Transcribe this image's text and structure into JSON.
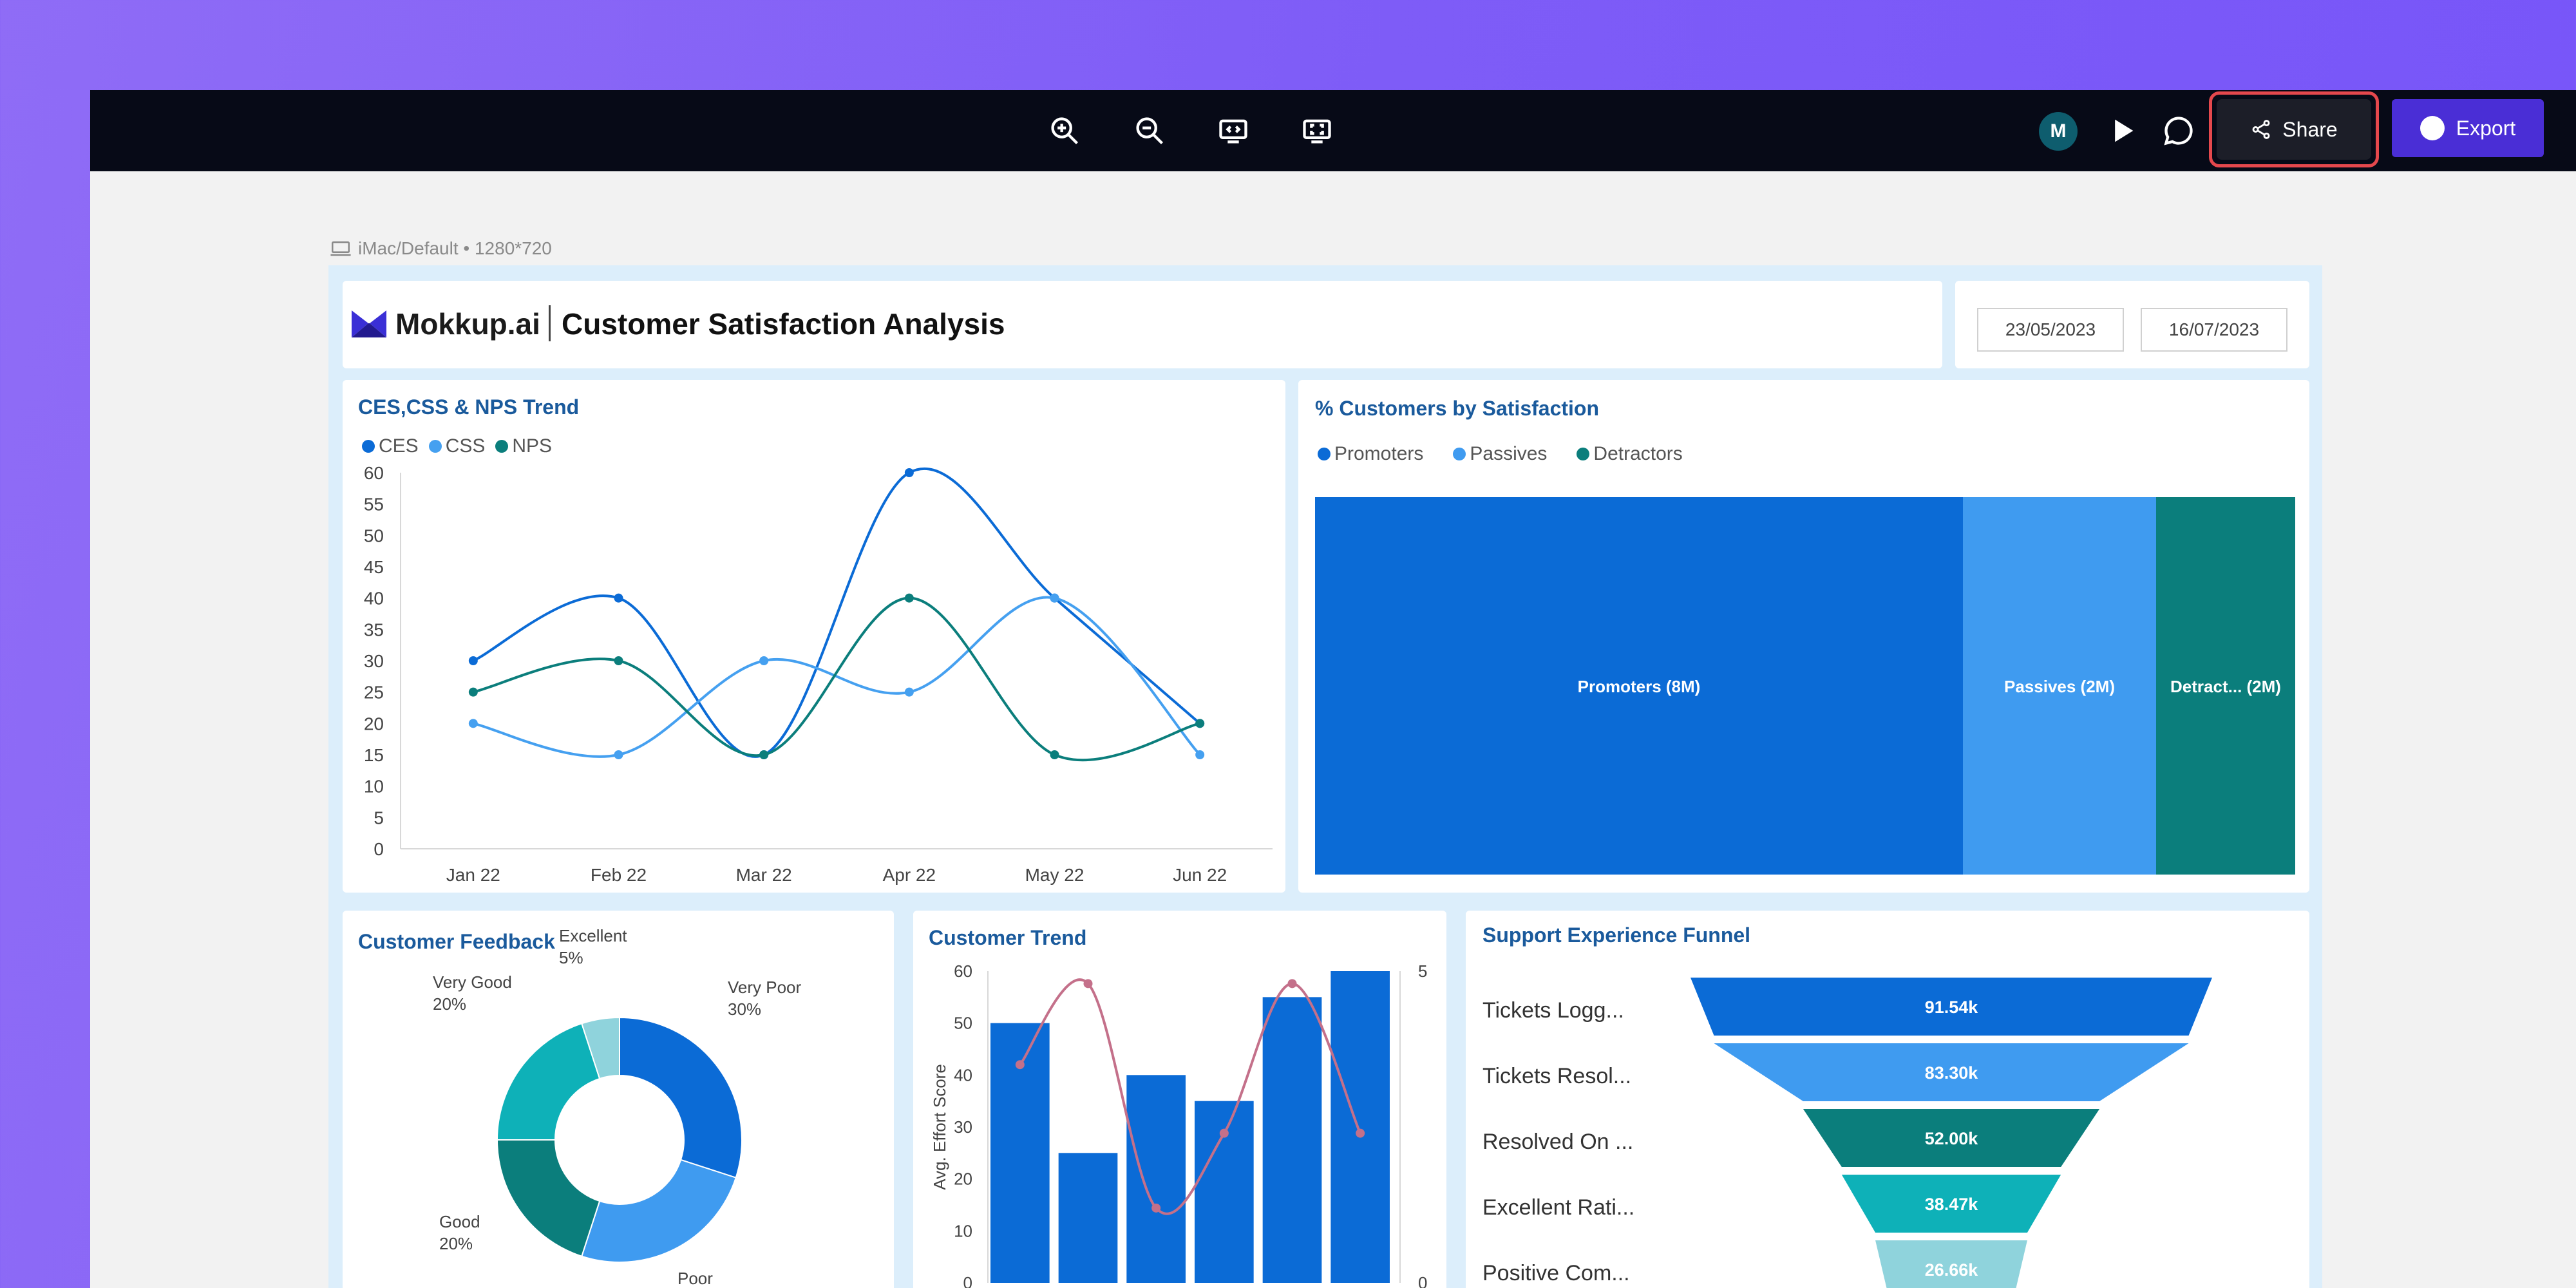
{
  "toolbar": {
    "center_icons": [
      "zoom-in-icon",
      "zoom-out-icon",
      "code-view-icon",
      "fit-screen-icon"
    ],
    "avatar_letter": "M",
    "share_label": "Share",
    "export_label": "Export",
    "colors": {
      "bar": "#070a17",
      "share_highlight": "#e5484d",
      "export": "#4a2ed6"
    }
  },
  "device_label": "iMac/Default • 1280*720",
  "header": {
    "logo_text": "Mokkup.ai",
    "title": "Customer Satisfaction Analysis",
    "date_from": "23/05/2023",
    "date_to": "16/07/2023"
  },
  "trend": {
    "title": "CES,CSS & NPS Trend",
    "chart_data": {
      "type": "line",
      "x": [
        "Jan 22",
        "Feb 22",
        "Mar 22",
        "Apr 22",
        "May 22",
        "Jun 22"
      ],
      "series": [
        {
          "name": "CES",
          "values": [
            30,
            40,
            15,
            60,
            40,
            20
          ],
          "color": "#0b6bd6"
        },
        {
          "name": "CSS",
          "values": [
            20,
            15,
            30,
            25,
            40,
            15
          ],
          "color": "#45a0f0"
        },
        {
          "name": "NPS",
          "values": [
            25,
            30,
            15,
            40,
            15,
            20
          ],
          "color": "#0b7e7c"
        }
      ],
      "ylim": [
        0,
        60
      ],
      "yticks": [
        0,
        5,
        10,
        15,
        20,
        25,
        30,
        35,
        40,
        45,
        50,
        55,
        60
      ],
      "legend": "top-left",
      "smooth": true
    }
  },
  "satisfaction": {
    "title": "% Customers by Satisfaction",
    "chart_data": {
      "type": "treemap",
      "legend": "top-left",
      "items": [
        {
          "name": "Promoters",
          "value": 8,
          "label": "Promoters (8M)",
          "color": "#0b6bd6"
        },
        {
          "name": "Passives",
          "value": 2,
          "label": "Passives (2M)",
          "color": "#3f9bf0"
        },
        {
          "name": "Detractors",
          "value": 2,
          "label": "Detract... (2M)",
          "color": "#0b7e7c"
        }
      ]
    }
  },
  "feedback": {
    "title": "Customer Feedback",
    "chart_data": {
      "type": "pie",
      "donut": true,
      "slices": [
        {
          "name": "Very Poor",
          "pct": "30%",
          "value": 30,
          "color": "#0b6bd6"
        },
        {
          "name": "Poor",
          "pct": "",
          "value": 25,
          "color": "#3f9bf0"
        },
        {
          "name": "Good",
          "pct": "20%",
          "value": 20,
          "color": "#0b7e7c"
        },
        {
          "name": "Very Good",
          "pct": "20%",
          "value": 20,
          "color": "#0eb1b8"
        },
        {
          "name": "Excellent",
          "pct": "5%",
          "value": 5,
          "color": "#8fd3dc"
        }
      ]
    }
  },
  "customer_trend": {
    "title": "Customer Trend",
    "chart_data": {
      "type": "bar",
      "ylabel": "Avg. Effort Score",
      "ylim": [
        0,
        60
      ],
      "yticks": [
        0,
        10,
        20,
        30,
        40,
        50,
        60
      ],
      "y2lim": [
        0,
        5
      ],
      "y2ticks": [
        0,
        5
      ],
      "values": [
        50,
        25,
        40,
        35,
        55,
        60
      ],
      "line_values": [
        3.5,
        4.8,
        1.2,
        2.4,
        4.8,
        2.4
      ],
      "bar_color": "#0b6bd6",
      "line_color": "#c4708a"
    }
  },
  "funnel": {
    "title": "Support Experience Funnel",
    "chart_data": {
      "type": "funnel",
      "stages": [
        {
          "name": "Tickets Logg...",
          "value": 91.54,
          "label": "91.54k",
          "color": "#0b6bd6"
        },
        {
          "name": "Tickets Resol...",
          "value": 83.3,
          "label": "83.30k",
          "color": "#3f9bf0"
        },
        {
          "name": "Resolved On ...",
          "value": 52.0,
          "label": "52.00k",
          "color": "#0b7e7c"
        },
        {
          "name": "Excellent Rati...",
          "value": 38.47,
          "label": "38.47k",
          "color": "#0eb1b8"
        },
        {
          "name": "Positive Com...",
          "value": 26.66,
          "label": "26.66k",
          "color": "#8fd3dc"
        }
      ]
    }
  }
}
